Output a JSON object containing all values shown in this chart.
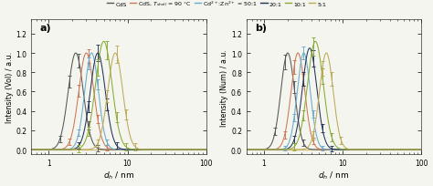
{
  "legend_labels": [
    "CdS",
    "CdS, $T_{shell}$ = 90 °C",
    "Cd$^{2+}$:Zn$^{2+}$ = 50:1",
    "20:1",
    "10:1",
    "5:1"
  ],
  "colors": [
    "#555555",
    "#cc7755",
    "#66aacc",
    "#223355",
    "#88aa33",
    "#bbaa55"
  ],
  "xlabel": "$d_h$ / nm",
  "ylabel_a": "Intensity (Vol) / a.u.",
  "ylabel_b": "Intensity (Num) / a.u.",
  "label_a": "a)",
  "label_b": "b)",
  "ylim": [
    -0.05,
    1.35
  ],
  "yticks": [
    0.0,
    0.2,
    0.4,
    0.6,
    0.8,
    1.0,
    1.2
  ],
  "xlim": [
    0.6,
    100
  ],
  "series_a": [
    {
      "mu": 2.2,
      "sigma": 0.22,
      "peak": 1.0,
      "err_scale": 0.07
    },
    {
      "mu": 3.0,
      "sigma": 0.22,
      "peak": 1.0,
      "err_scale": 0.07
    },
    {
      "mu": 3.5,
      "sigma": 0.2,
      "peak": 1.0,
      "err_scale": 0.06
    },
    {
      "mu": 4.2,
      "sigma": 0.22,
      "peak": 1.0,
      "err_scale": 0.08
    },
    {
      "mu": 5.0,
      "sigma": 0.24,
      "peak": 1.12,
      "err_scale": 0.09
    },
    {
      "mu": 7.0,
      "sigma": 0.22,
      "peak": 1.0,
      "err_scale": 0.08
    }
  ],
  "series_b": [
    {
      "mu": 2.0,
      "sigma": 0.2,
      "peak": 1.0,
      "err_scale": 0.07
    },
    {
      "mu": 2.7,
      "sigma": 0.2,
      "peak": 1.0,
      "err_scale": 0.07
    },
    {
      "mu": 3.2,
      "sigma": 0.19,
      "peak": 1.0,
      "err_scale": 0.06
    },
    {
      "mu": 3.8,
      "sigma": 0.21,
      "peak": 1.05,
      "err_scale": 0.08
    },
    {
      "mu": 4.5,
      "sigma": 0.23,
      "peak": 1.12,
      "err_scale": 0.09
    },
    {
      "mu": 6.2,
      "sigma": 0.2,
      "peak": 1.0,
      "err_scale": 0.08
    }
  ],
  "background_color": "#f5f5f0",
  "plot_bg": "#f5f5f0",
  "hline_color": "#ccbb77",
  "hline_y": 0.0,
  "n_errbar_pts": 16
}
